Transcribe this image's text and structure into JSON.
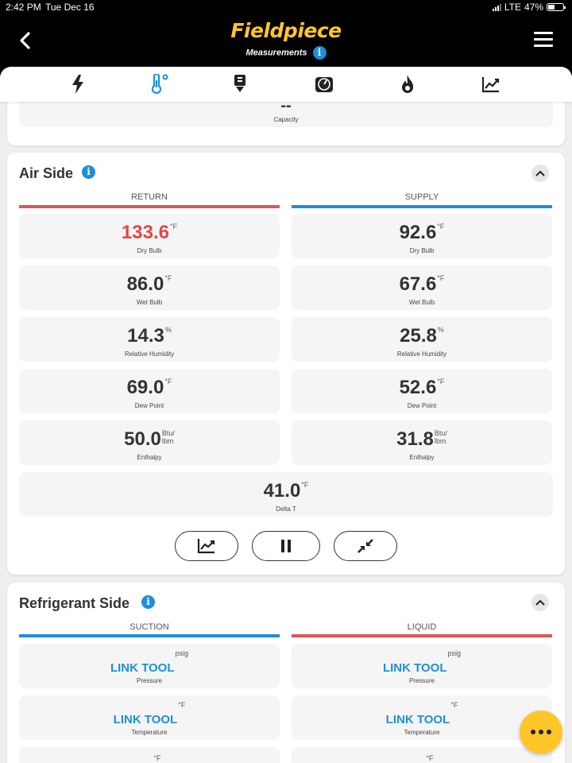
{
  "status_bar": {
    "time": "2:42 PM",
    "date": "Tue Dec 16",
    "network": "LTE",
    "battery": "47%",
    "battery_level": 0.47
  },
  "header": {
    "logo": "Fieldpiece",
    "subtitle": "Measurements",
    "info_icon": "i",
    "back_icon": "chevron-left-icon",
    "menu_icon": "hamburger-menu-icon",
    "brand_color": "#ffc629",
    "accent_color": "#1d8fdb"
  },
  "tabs": [
    {
      "name": "electrical",
      "icon": "lightning-bolt-icon",
      "active": false
    },
    {
      "name": "temperature",
      "icon": "thermometer-icon",
      "active": true
    },
    {
      "name": "download",
      "icon": "download-doc-icon",
      "active": false
    },
    {
      "name": "gauge",
      "icon": "gauge-icon",
      "active": false
    },
    {
      "name": "combustion",
      "icon": "flame-icon",
      "active": false
    },
    {
      "name": "trends",
      "icon": "trend-chart-icon",
      "active": false
    }
  ],
  "capacity": {
    "value": "--",
    "label": "Capacity"
  },
  "air_side": {
    "title": "Air Side",
    "info_icon": "i",
    "return_label": "RETURN",
    "supply_label": "SUPPLY",
    "return_color": "#e05555",
    "supply_color": "#1d8fdb",
    "return": [
      {
        "value": "133.6",
        "unit": "°F",
        "label": "Dry Bulb"
      },
      {
        "value": "86.0",
        "unit": "°F",
        "label": "Wet Bulb"
      },
      {
        "value": "14.3",
        "unit": "%",
        "label": "Relative Humidity"
      },
      {
        "value": "69.0",
        "unit": "°F",
        "label": "Dew Point"
      },
      {
        "value": "50.0",
        "unit_top": "Btu/",
        "unit_bottom": "lbm",
        "label": "Enthalpy"
      }
    ],
    "supply": [
      {
        "value": "92.6",
        "unit": "°F",
        "label": "Dry Bulb"
      },
      {
        "value": "67.6",
        "unit": "°F",
        "label": "Wet Bulb"
      },
      {
        "value": "25.8",
        "unit": "%",
        "label": "Relative Humidity"
      },
      {
        "value": "52.6",
        "unit": "°F",
        "label": "Dew Point"
      },
      {
        "value": "31.8",
        "unit_top": "Btu/",
        "unit_bottom": "lbm",
        "label": "Enthalpy"
      }
    ],
    "delta_t": {
      "value": "41.0",
      "unit": "°F",
      "label": "Delta T"
    },
    "controls": [
      {
        "name": "graph",
        "icon": "trend-chart-icon"
      },
      {
        "name": "pause",
        "icon": "pause-icon"
      },
      {
        "name": "collapse",
        "icon": "minimize-arrows-icon"
      }
    ]
  },
  "refrigerant_side": {
    "title": "Refrigerant Side",
    "info_icon": "i",
    "suction_label": "SUCTION",
    "liquid_label": "LIQUID",
    "suction_color": "#1d8fdb",
    "liquid_color": "#e05555",
    "suction": [
      {
        "value": "LINK TOOL",
        "unit": "psig",
        "label": "Pressure"
      },
      {
        "value": "LINK TOOL",
        "unit": "°F",
        "label": "Temperature"
      },
      {
        "unit": "°F"
      }
    ],
    "liquid": [
      {
        "value": "LINK TOOL",
        "unit": "psig",
        "label": "Pressure"
      },
      {
        "value": "LINK TOOL",
        "unit": "°F",
        "label": "Temperature"
      },
      {
        "unit": "°F"
      }
    ]
  },
  "fab_icon": "more-dots-icon"
}
